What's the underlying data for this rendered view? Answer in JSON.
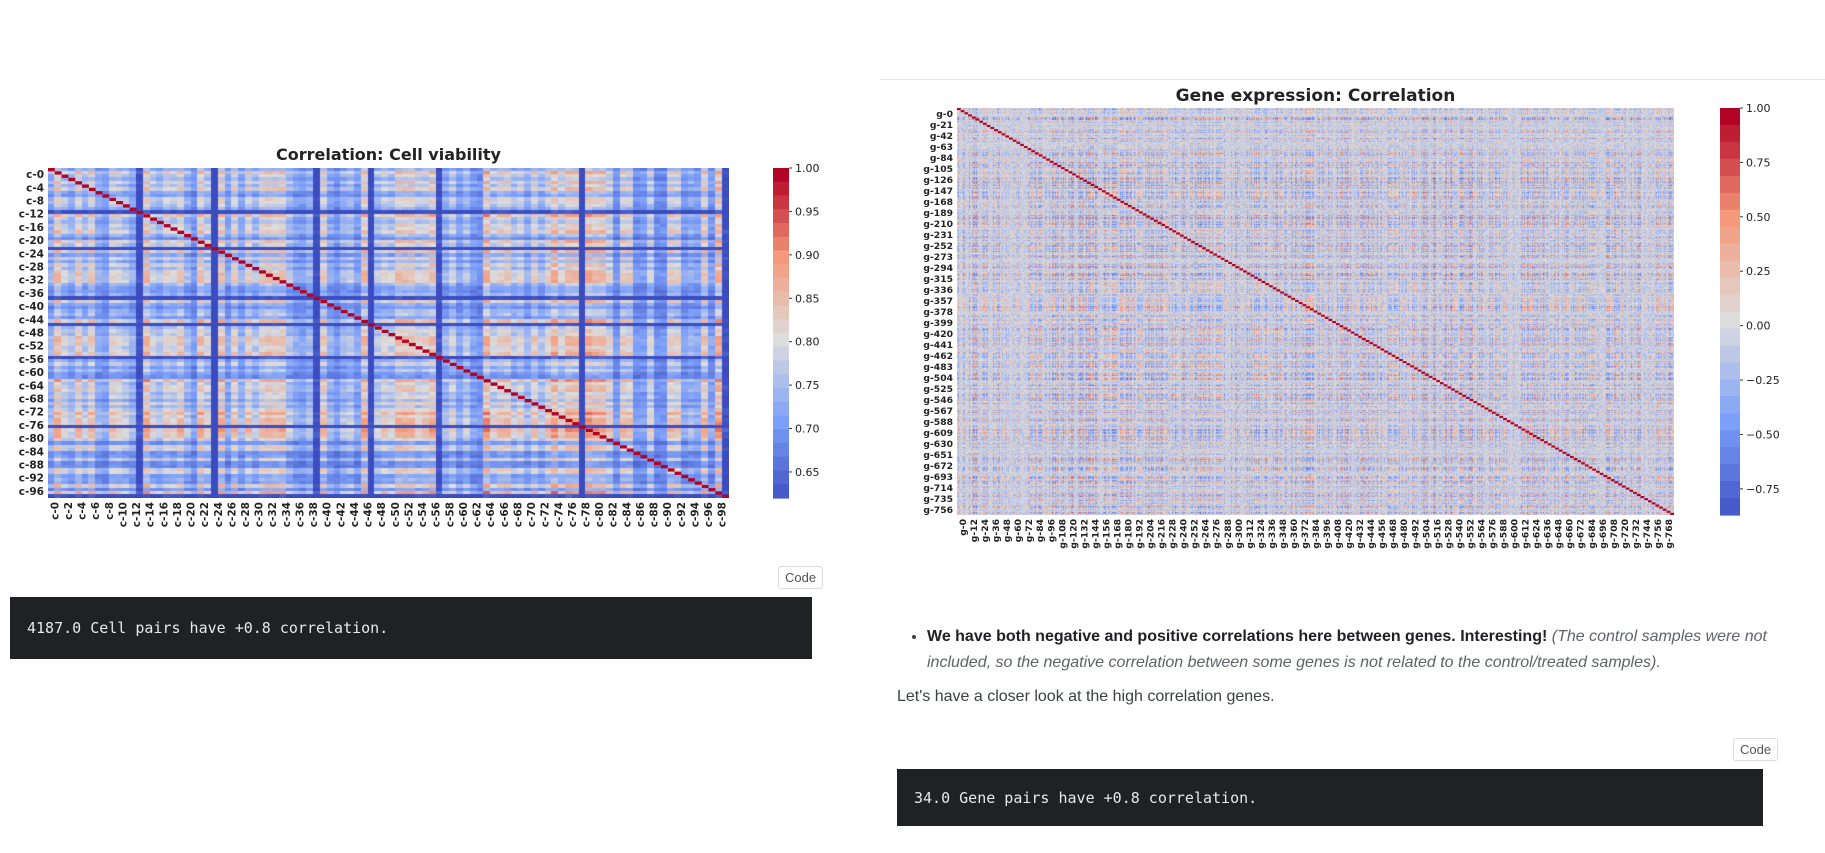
{
  "left": {
    "chart_title": "Correlation: Cell viability",
    "code_button": "Code",
    "output_text": "4187.0 Cell pairs have +0.8 correlation."
  },
  "right": {
    "chart_title": "Gene expression: Correlation",
    "bullet_bold": "We have both negative and positive correlations here between genes. Interesting!",
    "bullet_italic": "(The control samples were not included, so the negative correlation between some genes is not related to the control/treated samples).",
    "paragraph": "Let's have a closer look at the high correlation genes.",
    "code_button": "Code",
    "output_text": "34.0 Gene pairs have +0.8 correlation."
  },
  "chart_data": [
    {
      "type": "heatmap",
      "title": "Correlation: Cell viability",
      "xlabel": "",
      "ylabel": "",
      "row_tick_labels": [
        "c-0",
        "c-4",
        "c-8",
        "c-12",
        "c-16",
        "c-20",
        "c-24",
        "c-28",
        "c-32",
        "c-36",
        "c-40",
        "c-44",
        "c-48",
        "c-52",
        "c-56",
        "c-60",
        "c-64",
        "c-68",
        "c-72",
        "c-76",
        "c-80",
        "c-84",
        "c-88",
        "c-92",
        "c-96"
      ],
      "col_tick_labels": [
        "c-0",
        "c-2",
        "c-4",
        "c-6",
        "c-8",
        "c-10",
        "c-12",
        "c-14",
        "c-16",
        "c-18",
        "c-20",
        "c-22",
        "c-24",
        "c-26",
        "c-28",
        "c-30",
        "c-32",
        "c-34",
        "c-36",
        "c-38",
        "c-40",
        "c-42",
        "c-44",
        "c-46",
        "c-48",
        "c-50",
        "c-52",
        "c-54",
        "c-56",
        "c-58",
        "c-60",
        "c-62",
        "c-64",
        "c-66",
        "c-68",
        "c-70",
        "c-72",
        "c-74",
        "c-76",
        "c-78",
        "c-80",
        "c-82",
        "c-84",
        "c-86",
        "c-88",
        "c-90",
        "c-92",
        "c-94",
        "c-96",
        "c-98"
      ],
      "n": 100,
      "colorbar_ticks": [
        1.0,
        0.95,
        0.9,
        0.85,
        0.8,
        0.75,
        0.7,
        0.65
      ],
      "colorbar_tick_labels": [
        "1.00",
        "0.95",
        "0.90",
        "0.85",
        "0.80",
        "0.75",
        "0.70",
        "0.65"
      ],
      "vrange": [
        0.62,
        1.0
      ],
      "colormap": "coolwarm",
      "diagonal_value": 1.0
    },
    {
      "type": "heatmap",
      "title": "Gene expression: Correlation",
      "xlabel": "",
      "ylabel": "",
      "row_tick_labels": [
        "g-0",
        "g-21",
        "g-42",
        "g-63",
        "g-84",
        "g-105",
        "g-126",
        "g-147",
        "g-168",
        "g-189",
        "g-210",
        "g-231",
        "g-252",
        "g-273",
        "g-294",
        "g-315",
        "g-336",
        "g-357",
        "g-378",
        "g-399",
        "g-420",
        "g-441",
        "g-462",
        "g-483",
        "g-504",
        "g-525",
        "g-546",
        "g-567",
        "g-588",
        "g-609",
        "g-630",
        "g-651",
        "g-672",
        "g-693",
        "g-714",
        "g-735",
        "g-756"
      ],
      "col_tick_labels": [
        "g-0",
        "g-12",
        "g-24",
        "g-36",
        "g-48",
        "g-60",
        "g-72",
        "g-84",
        "g-96",
        "g-108",
        "g-120",
        "g-132",
        "g-144",
        "g-156",
        "g-168",
        "g-180",
        "g-192",
        "g-204",
        "g-216",
        "g-228",
        "g-240",
        "g-252",
        "g-264",
        "g-276",
        "g-288",
        "g-300",
        "g-312",
        "g-324",
        "g-336",
        "g-348",
        "g-360",
        "g-372",
        "g-384",
        "g-396",
        "g-408",
        "g-420",
        "g-432",
        "g-444",
        "g-456",
        "g-468",
        "g-480",
        "g-492",
        "g-504",
        "g-516",
        "g-528",
        "g-540",
        "g-552",
        "g-564",
        "g-576",
        "g-588",
        "g-600",
        "g-612",
        "g-624",
        "g-636",
        "g-648",
        "g-660",
        "g-672",
        "g-684",
        "g-696",
        "g-708",
        "g-720",
        "g-732",
        "g-744",
        "g-756",
        "g-768"
      ],
      "n": 772,
      "colorbar_ticks": [
        1.0,
        0.75,
        0.5,
        0.25,
        0.0,
        -0.25,
        -0.5,
        -0.75
      ],
      "colorbar_tick_labels": [
        "1.00",
        "0.75",
        "0.50",
        "0.25",
        "0.00",
        "−0.25",
        "−0.50",
        "−0.75"
      ],
      "vrange": [
        -0.87,
        1.0
      ],
      "colormap": "coolwarm",
      "diagonal_value": 1.0
    }
  ]
}
